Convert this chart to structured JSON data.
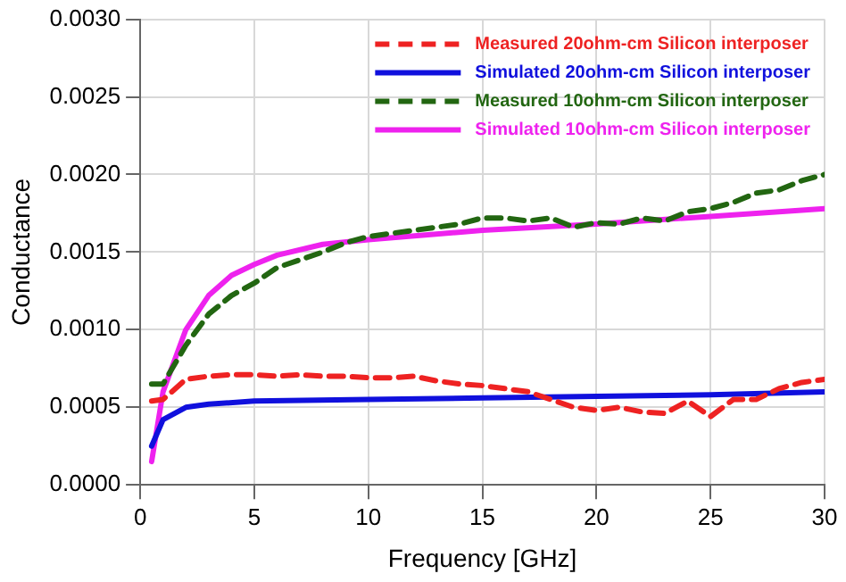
{
  "chart_data": {
    "type": "line",
    "xlabel": "Frequency [GHz]",
    "ylabel": "Conductance",
    "xlim": [
      0,
      30
    ],
    "xticks": [
      0,
      5,
      10,
      15,
      20,
      25,
      30
    ],
    "ylim": [
      0,
      0.003
    ],
    "yticks": [
      {
        "value": 0,
        "label": "0.0000"
      },
      {
        "value": 0.0005,
        "label": "0.0005"
      },
      {
        "value": 0.001,
        "label": "0.0010"
      },
      {
        "value": 0.0015,
        "label": "0.0015"
      },
      {
        "value": 0.002,
        "label": "0.0020"
      },
      {
        "value": 0.0025,
        "label": "0.0025"
      },
      {
        "value": 0.003,
        "label": "0.0030"
      }
    ],
    "grid": true,
    "legend": "top right",
    "marker": "none",
    "series": [
      {
        "name": "Measured 20ohm-cm Silicon interposer",
        "color": "#ee2222",
        "line_style": "dashed",
        "x": [
          0.5,
          1,
          2,
          3,
          4,
          5,
          6,
          7,
          8,
          9,
          10,
          11,
          12,
          13,
          14,
          15,
          16,
          17,
          18,
          19,
          20,
          21,
          22,
          23,
          24,
          25,
          26,
          27,
          28,
          29,
          30
        ],
        "values": [
          0.00054,
          0.00055,
          0.00068,
          0.0007,
          0.00071,
          0.00071,
          0.0007,
          0.00071,
          0.0007,
          0.0007,
          0.00069,
          0.00069,
          0.0007,
          0.00067,
          0.00065,
          0.00064,
          0.00062,
          0.0006,
          0.00055,
          0.0005,
          0.00048,
          0.0005,
          0.00047,
          0.00046,
          0.00054,
          0.00044,
          0.00055,
          0.00055,
          0.00062,
          0.00066,
          0.00068
        ]
      },
      {
        "name": "Simulated 20ohm-cm Silicon interposer",
        "color": "#1010dd",
        "line_style": "solid",
        "x": [
          0.5,
          1,
          2,
          3,
          5,
          10,
          15,
          20,
          25,
          30
        ],
        "values": [
          0.00025,
          0.00042,
          0.0005,
          0.00052,
          0.00054,
          0.00055,
          0.00056,
          0.00057,
          0.00058,
          0.0006
        ]
      },
      {
        "name": "Measured 10ohm-cm Silicon interposer",
        "color": "#226611",
        "line_style": "dashed",
        "x": [
          0.5,
          1,
          2,
          3,
          4,
          5,
          6,
          7,
          8,
          9,
          10,
          11,
          12,
          13,
          14,
          15,
          16,
          17,
          18,
          19,
          20,
          21,
          22,
          23,
          24,
          25,
          26,
          27,
          28,
          29,
          30
        ],
        "values": [
          0.00065,
          0.00065,
          0.0009,
          0.0011,
          0.00122,
          0.0013,
          0.0014,
          0.00145,
          0.0015,
          0.00156,
          0.0016,
          0.00162,
          0.00164,
          0.00166,
          0.00168,
          0.00172,
          0.00172,
          0.0017,
          0.00172,
          0.00166,
          0.00169,
          0.00168,
          0.00172,
          0.0017,
          0.00176,
          0.00178,
          0.00182,
          0.00188,
          0.0019,
          0.00196,
          0.002
        ]
      },
      {
        "name": "Simulated 10ohm-cm Silicon interposer",
        "color": "#ee22ee",
        "line_style": "solid",
        "x": [
          0.5,
          1,
          1.5,
          2,
          3,
          4,
          5,
          6,
          8,
          10,
          15,
          20,
          25,
          30
        ],
        "values": [
          0.00015,
          0.0006,
          0.0008,
          0.001,
          0.00122,
          0.00135,
          0.00142,
          0.00148,
          0.00155,
          0.00158,
          0.00164,
          0.00168,
          0.00173,
          0.00178
        ]
      }
    ]
  }
}
